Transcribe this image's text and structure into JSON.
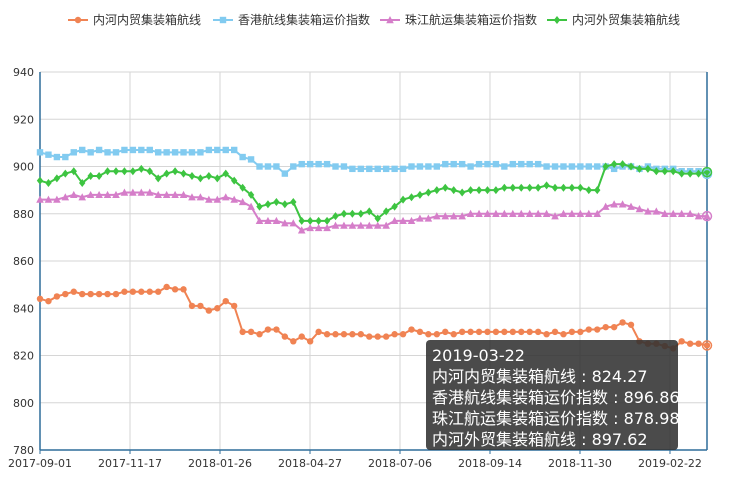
{
  "chart_data": {
    "type": "line",
    "title": "",
    "xlabel": "",
    "ylabel": "",
    "ylim": [
      780,
      940
    ],
    "y_ticks": [
      780,
      800,
      820,
      840,
      860,
      880,
      900,
      920,
      940
    ],
    "x_tick_labels": [
      "2017-09-01",
      "2017-11-17",
      "2018-01-26",
      "2018-04-27",
      "2018-07-06",
      "2018-09-14",
      "2018-11-30",
      "2019-02-22"
    ],
    "grid": true,
    "legend_position": "top",
    "series": [
      {
        "name": "内河内贸集装箱航线",
        "color": "#f08353",
        "marker": "circle",
        "values": [
          844,
          843,
          845,
          846,
          847,
          846,
          846,
          846,
          846,
          846,
          847,
          847,
          847,
          847,
          847,
          849,
          848,
          848,
          841,
          841,
          839,
          840,
          843,
          841,
          830,
          830,
          829,
          831,
          831,
          828,
          826,
          828,
          826,
          830,
          829,
          829,
          829,
          829,
          829,
          828,
          828,
          828,
          829,
          829,
          831,
          830,
          829,
          829,
          830,
          829,
          830,
          830,
          830,
          830,
          830,
          830,
          830,
          830,
          830,
          830,
          829,
          830,
          829,
          830,
          830,
          831,
          831,
          832,
          832,
          834,
          833,
          826,
          825,
          825,
          824,
          823,
          826,
          825,
          825,
          824.27
        ]
      },
      {
        "name": "香港航线集装箱运价指数",
        "color": "#82cbf0",
        "marker": "square",
        "values": [
          906,
          905,
          904,
          904,
          906,
          907,
          906,
          907,
          906,
          906,
          907,
          907,
          907,
          907,
          906,
          906,
          906,
          906,
          906,
          906,
          907,
          907,
          907,
          907,
          904,
          903,
          900,
          900,
          900,
          897,
          900,
          901,
          901,
          901,
          901,
          900,
          900,
          899,
          899,
          899,
          899,
          899,
          899,
          899,
          900,
          900,
          900,
          900,
          901,
          901,
          901,
          900,
          901,
          901,
          901,
          900,
          901,
          901,
          901,
          901,
          900,
          900,
          900,
          900,
          900,
          900,
          900,
          900,
          899,
          900,
          900,
          899,
          900,
          899,
          899,
          899,
          898,
          898,
          898,
          896.86
        ]
      },
      {
        "name": "珠江航运集装箱运价指数",
        "color": "#d57ec9",
        "marker": "triangle",
        "values": [
          886,
          886,
          886,
          887,
          888,
          887,
          888,
          888,
          888,
          888,
          889,
          889,
          889,
          889,
          888,
          888,
          888,
          888,
          887,
          887,
          886,
          886,
          887,
          886,
          885,
          883,
          877,
          877,
          877,
          876,
          876,
          873,
          874,
          874,
          874,
          875,
          875,
          875,
          875,
          875,
          875,
          875,
          877,
          877,
          877,
          878,
          878,
          879,
          879,
          879,
          879,
          880,
          880,
          880,
          880,
          880,
          880,
          880,
          880,
          880,
          880,
          879,
          880,
          880,
          880,
          880,
          880,
          883,
          884,
          884,
          883,
          882,
          881,
          881,
          880,
          880,
          880,
          880,
          879,
          878.98
        ]
      },
      {
        "name": "内河外贸集装箱航线",
        "color": "#3dc441",
        "marker": "diamond",
        "values": [
          894,
          893,
          895,
          897,
          898,
          893,
          896,
          896,
          898,
          898,
          898,
          898,
          899,
          898,
          895,
          897,
          898,
          897,
          896,
          895,
          896,
          895,
          897,
          894,
          891,
          888,
          883,
          884,
          885,
          884,
          885,
          877,
          877,
          877,
          877,
          879,
          880,
          880,
          880,
          881,
          878,
          881,
          883,
          886,
          887,
          888,
          889,
          890,
          891,
          890,
          889,
          890,
          890,
          890,
          890,
          891,
          891,
          891,
          891,
          891,
          892,
          891,
          891,
          891,
          891,
          890,
          890,
          900,
          901,
          901,
          900,
          899,
          899,
          898,
          898,
          898,
          897,
          897,
          897,
          897.62
        ]
      }
    ]
  },
  "tooltip": {
    "date": "2019-03-22",
    "lines": [
      "内河内贸集装箱航线 : 824.27",
      "香港航线集装箱运价指数 : 896.86",
      "珠江航运集装箱运价指数 : 878.98",
      "内河外贸集装箱航线 : 897.62"
    ]
  }
}
